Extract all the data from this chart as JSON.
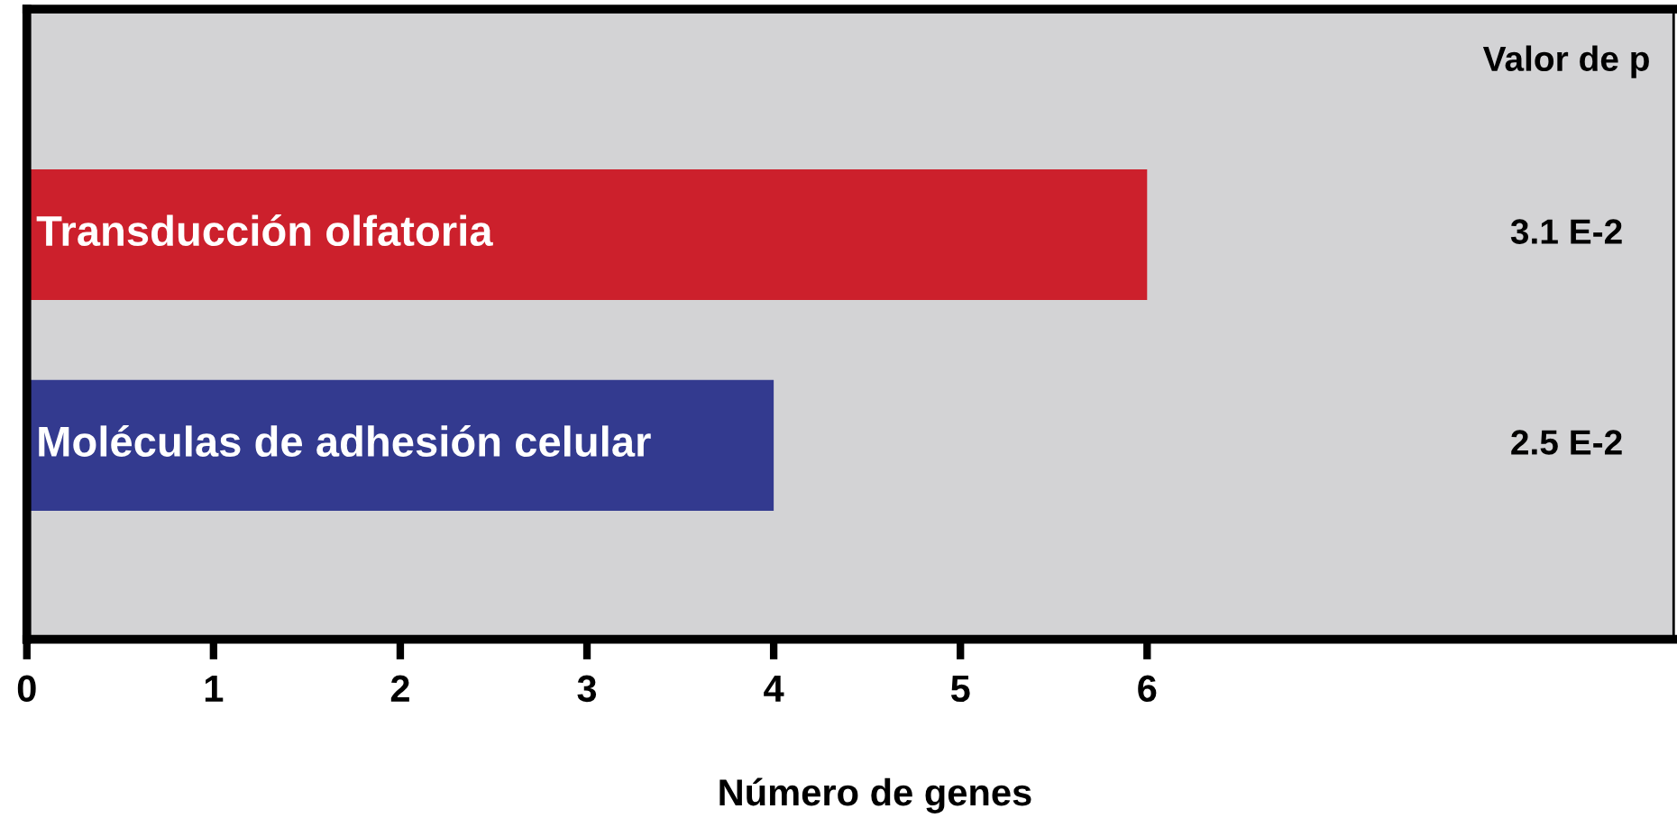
{
  "chart_data": {
    "type": "bar",
    "orientation": "horizontal",
    "categories": [
      "Transducción olfatoria",
      "Moléculas de adhesión celular"
    ],
    "values": [
      6,
      4
    ],
    "colors": [
      "#cc202c",
      "#333a8f"
    ],
    "xlabel": "Número de genes",
    "xlim": [
      0,
      8.82
    ],
    "xticks": [
      0,
      1,
      2,
      3,
      4,
      5,
      6
    ],
    "annotations": [
      "Valor de p",
      "3.1 E-2",
      "2.5 E-2"
    ],
    "grid": false,
    "legend": false
  }
}
